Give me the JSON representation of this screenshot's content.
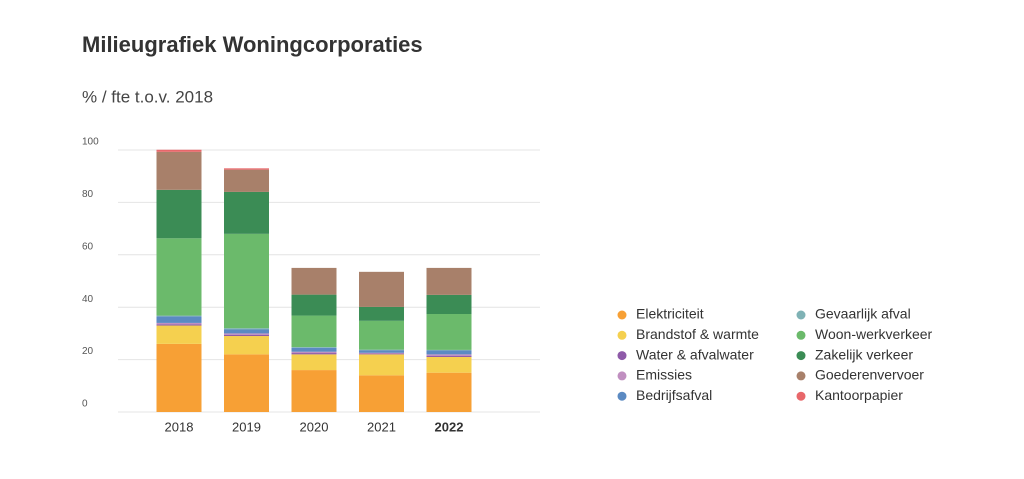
{
  "chart_data": {
    "type": "stacked_bar",
    "title": "Milieugrafiek Woningcorporaties",
    "subtitle": "% / fte t.o.v. 2018",
    "categories": [
      "2018",
      "2019",
      "2020",
      "2021",
      "2022"
    ],
    "series": [
      {
        "name": "Elektriciteit",
        "color": "#f7a035",
        "values": [
          26,
          22,
          16,
          14,
          15
        ]
      },
      {
        "name": "Brandstof & warmte",
        "color": "#f5d04f",
        "values": [
          7,
          7,
          6,
          8,
          6
        ]
      },
      {
        "name": "Water & afvalwater",
        "color": "#8e5aa8",
        "values": [
          0.5,
          0.5,
          0.5,
          0.3,
          0.5
        ]
      },
      {
        "name": "Emissies",
        "color": "#c08fc0",
        "values": [
          0.5,
          0.5,
          0.5,
          0.3,
          0.5
        ]
      },
      {
        "name": "Bedrijfsafval",
        "color": "#5b8ac2",
        "values": [
          2.5,
          1.5,
          1.5,
          1,
          1.5
        ]
      },
      {
        "name": "Gevaarlijk afval",
        "color": "#7fb2b5",
        "values": [
          0.3,
          0.5,
          0.3,
          0.2,
          0.2
        ]
      },
      {
        "name": "Woon-werkverkeer",
        "color": "#6bba6b",
        "values": [
          29.5,
          36,
          12,
          11,
          13.7
        ]
      },
      {
        "name": "Zakelijk verkeer",
        "color": "#3b8c55",
        "values": [
          18.5,
          16,
          8,
          5.3,
          7.3
        ]
      },
      {
        "name": "Goederenvervoer",
        "color": "#a8806a",
        "values": [
          14.5,
          8.5,
          10.2,
          13.4,
          10.3
        ]
      },
      {
        "name": "Kantoorpapier",
        "color": "#e8676a",
        "values": [
          0.8,
          0.5,
          0,
          0,
          0
        ]
      }
    ],
    "ylim": [
      0,
      100
    ],
    "yticks": [
      0,
      20,
      40,
      60,
      80,
      100
    ],
    "grid": true
  }
}
